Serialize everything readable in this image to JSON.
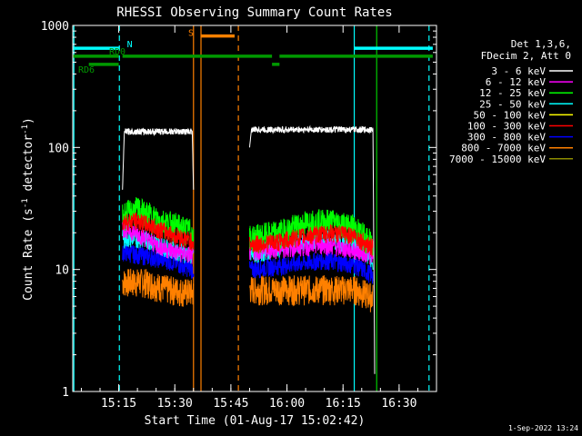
{
  "chart_data": {
    "type": "line",
    "title": "RHESSI Observing Summary Count Rates",
    "xlabel": "Start Time (01-Aug-17 15:02:42)",
    "ylabel": "Count Rate (s",
    "ylabel_sup": "-1",
    "ylabel_tail": " detector",
    "ylabel_end": ")",
    "y_scale": "log",
    "ylim": [
      1,
      1000
    ],
    "xlim": [
      "15:02:42",
      "16:40:00"
    ],
    "x_ticks": [
      "15:15",
      "15:30",
      "15:45",
      "16:00",
      "16:15",
      "16:30"
    ],
    "y_ticks": [
      "1",
      "10",
      "100",
      "1000"
    ],
    "grid": false,
    "legend_position": "right",
    "legend_header": [
      "Det 1,3,6,",
      "FDecim 2, Att 0"
    ],
    "series": [
      {
        "name": "3 - 6 keV",
        "color": "#ffffff",
        "segments": [
          {
            "x": [
              "15:16:00",
              "15:16:30",
              "15:34:40",
              "15:35:00"
            ],
            "y": [
              45,
              135,
              135,
              45
            ]
          },
          {
            "x": [
              "15:50:00",
              "15:50:30",
              "16:23:00",
              "16:23:30"
            ],
            "y": [
              100,
              140,
              140,
              1
            ]
          }
        ]
      },
      {
        "name": "6 - 12 keV",
        "color": "#ff00ff",
        "segments": [
          {
            "x": [
              "15:16:00",
              "15:20:00",
              "15:25:00",
              "15:30:00",
              "15:35:00"
            ],
            "y": [
              22,
              20,
              16,
              14,
              13
            ]
          },
          {
            "x": [
              "15:50:00",
              "16:00:00",
              "16:10:00",
              "16:20:00",
              "16:23:00"
            ],
            "y": [
              14,
              15,
              16,
              14,
              13
            ]
          }
        ]
      },
      {
        "name": "12 - 25 keV",
        "color": "#00ff00",
        "segments": [
          {
            "x": [
              "15:16:00",
              "15:20:00",
              "15:25:00",
              "15:30:00",
              "15:35:00"
            ],
            "y": [
              28,
              31,
              26,
              23,
              20
            ]
          },
          {
            "x": [
              "15:50:00",
              "15:58:00",
              "16:05:00",
              "16:12:00",
              "16:18:00",
              "16:23:00"
            ],
            "y": [
              18,
              20,
              24,
              25,
              22,
              16
            ]
          }
        ]
      },
      {
        "name": "25 - 50 keV",
        "color": "#00ffff",
        "segments": [
          {
            "x": [
              "15:16:00",
              "15:22:00",
              "15:28:00",
              "15:35:00"
            ],
            "y": [
              18,
              18,
              15,
              13
            ]
          },
          {
            "x": [
              "15:50:00",
              "16:00:00",
              "16:10:00",
              "16:18:00",
              "16:23:00"
            ],
            "y": [
              13,
              16,
              18,
              16,
              12
            ]
          }
        ]
      },
      {
        "name": "50 - 100 keV",
        "color": "#ffff00",
        "segments": []
      },
      {
        "name": "100 - 300 keV",
        "color": "#ff0000",
        "segments": [
          {
            "x": [
              "15:16:00",
              "15:20:00",
              "15:25:00",
              "15:30:00",
              "15:35:00"
            ],
            "y": [
              25,
              25,
              22,
              19,
              17
            ]
          },
          {
            "x": [
              "15:50:00",
              "15:58:00",
              "16:05:00",
              "16:12:00",
              "16:18:00",
              "16:23:00"
            ],
            "y": [
              16,
              17,
              19,
              20,
              19,
              15
            ]
          }
        ]
      },
      {
        "name": "300 - 800 keV",
        "color": "#0000ff",
        "segments": [
          {
            "x": [
              "15:16:00",
              "15:22:00",
              "15:28:00",
              "15:35:00"
            ],
            "y": [
              14,
              13,
              12,
              10
            ]
          },
          {
            "x": [
              "15:50:00",
              "16:00:00",
              "16:10:00",
              "16:18:00",
              "16:23:00"
            ],
            "y": [
              10,
              11,
              12,
              11,
              9
            ]
          }
        ]
      },
      {
        "name": "800 - 7000 keV",
        "color": "#ff8000",
        "segments": [
          {
            "x": [
              "15:16:00",
              "15:22:00",
              "15:28:00",
              "15:35:00"
            ],
            "y": [
              8,
              8,
              7,
              6.5
            ]
          },
          {
            "x": [
              "15:50:00",
              "16:00:00",
              "16:10:00",
              "16:18:00",
              "16:23:00"
            ],
            "y": [
              7,
              7,
              7,
              7,
              6
            ]
          }
        ]
      },
      {
        "name": "7000 - 15000 keV",
        "color": "#8b8b00",
        "segments": []
      }
    ],
    "status_bars": [
      {
        "label": "N",
        "color": "#00ffff",
        "y": 650,
        "segments": [
          [
            "15:02:42",
            "15:15:15"
          ],
          [
            "16:18:00",
            "16:39:00"
          ]
        ]
      },
      {
        "label": "RD0",
        "color": "#009900",
        "y": 560,
        "segments": [
          [
            "15:02:42",
            "15:15:00"
          ],
          [
            "15:16:00",
            "15:56:00"
          ],
          [
            "15:58:00",
            "16:39:00"
          ]
        ]
      },
      {
        "label": "RD6",
        "color": "#009900",
        "y": 480,
        "segments": [
          [
            "15:07:00",
            "15:15:00"
          ],
          [
            "15:56:00",
            "15:58:00"
          ]
        ]
      },
      {
        "label": "S",
        "color": "#ff8000",
        "y": 820,
        "segments": [
          [
            "15:37:00",
            "15:46:00"
          ]
        ]
      }
    ],
    "vlines": [
      {
        "x": "15:03:00",
        "color": "#00ffff",
        "style": "solid"
      },
      {
        "x": "15:15:10",
        "color": "#00ffff",
        "style": "dashed"
      },
      {
        "x": "15:35:00",
        "color": "#ff8000",
        "style": "solid"
      },
      {
        "x": "15:37:00",
        "color": "#ff8000",
        "style": "solid"
      },
      {
        "x": "15:47:00",
        "color": "#ff8000",
        "style": "dashed"
      },
      {
        "x": "16:18:00",
        "color": "#00ffff",
        "style": "solid"
      },
      {
        "x": "16:24:00",
        "color": "#00cc00",
        "style": "solid"
      },
      {
        "x": "16:38:00",
        "color": "#00ffff",
        "style": "dashed"
      }
    ]
  },
  "footer": {
    "timestamp": "1-Sep-2022 13:24"
  }
}
